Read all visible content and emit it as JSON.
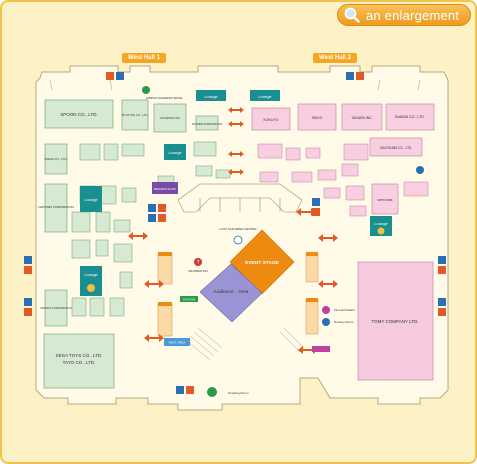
{
  "header": {
    "enlarge_label": "an enlargement"
  },
  "halls": [
    "West Hall 1",
    "West Hall 2"
  ],
  "booths": {
    "spoon": "SPOON CO., LTD.",
    "sega": "SEGA TOYS CO., LTD.",
    "tayo": "TAYO CO., LTD.",
    "tomy": "TOMY COMPANY LTD.",
    "bandai": "BANDAI CO., LTD.",
    "takara": "TAKARA INC.",
    "seiko": "SEIKO",
    "kokuyo": "KOKUYO",
    "agatsuma": "AGATSUMA CO., LTD.",
    "ikeda": "IKEDA CO., LTD.",
    "happinet": "HAPPINET CORPORATION",
    "pilot": "PILOT INK CO., LTD.",
    "yamada": "YAMADA CORPORATION",
    "juguetes": "JUGUETES INC.",
    "aoshima": "AOSHIMA CORPORATION",
    "tsukuda": "TSUKUDA ORIGINAL",
    "nipponbk": "NIPPONBK"
  },
  "areas": {
    "event_stage": "EVENT STAGE",
    "audience_area": "Audience　Area",
    "lounge": "Lounge",
    "lost_children": "LOST CHILDREN CENTER",
    "information": "INFORMATION",
    "smoking_room": "Smoking Room",
    "first_aid": "First aid Station",
    "nursery": "Nursery Room",
    "station": "STATION",
    "rest_area": "REST AREA",
    "campus": "CAMPUS CHILDREN'S SPACE",
    "brand_shop": "BRANDS SHOP"
  },
  "colors": {
    "frame_bg": "#fdf1c6",
    "frame_border": "#f2c24a",
    "event_stage": "#ee8a10",
    "audience": "#9b94d4",
    "tomy_booth": "#f7c9df",
    "green_booth": "#d6ead3",
    "teal_lounge": "#1a8f8f",
    "pink_booth": "#f7cfe0",
    "accent_arrow": "#e25a28"
  },
  "icons": [
    "magnifier-icon",
    "restroom-icon",
    "info-icon",
    "first-aid-icon",
    "nursery-icon",
    "smoking-icon",
    "wheelchair-icon"
  ]
}
